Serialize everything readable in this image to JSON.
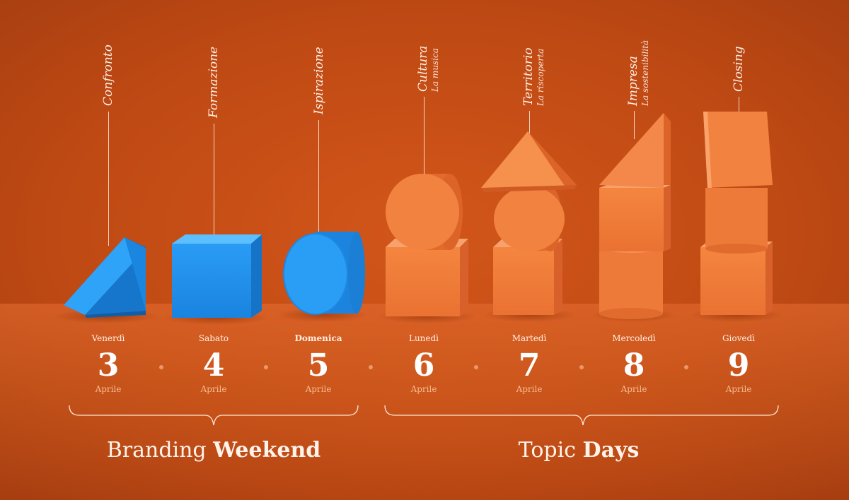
{
  "topics": [
    {
      "main": "Confronto",
      "sub": ""
    },
    {
      "main": "Formazione",
      "sub": ""
    },
    {
      "main": "Ispirazione",
      "sub": ""
    },
    {
      "main": "Cultura",
      "sub": "La musica"
    },
    {
      "main": "Territorio",
      "sub": "La riscoperta"
    },
    {
      "main": "Impresa",
      "sub": "La sostenibilità"
    },
    {
      "main": "Closing",
      "sub": ""
    }
  ],
  "days": [
    {
      "weekday": "Venerdì",
      "number": "3",
      "month": "Aprile"
    },
    {
      "weekday": "Sabato",
      "number": "4",
      "month": "Aprile"
    },
    {
      "weekday": "Domenica",
      "number": "5",
      "month": "Aprile"
    },
    {
      "weekday": "Lunedì",
      "number": "6",
      "month": "Aprile"
    },
    {
      "weekday": "Martedì",
      "number": "7",
      "month": "Aprile"
    },
    {
      "weekday": "Mercoledì",
      "number": "8",
      "month": "Aprile"
    },
    {
      "weekday": "Giovedì",
      "number": "9",
      "month": "Aprile"
    }
  ],
  "groups": {
    "branding": {
      "light": "Branding ",
      "bold": "Weekend"
    },
    "topic": {
      "light": "Topic ",
      "bold": "Days"
    }
  },
  "colors": {
    "blue": "#2196f3",
    "orange": "#f07a3a",
    "background": "#c04a14"
  }
}
